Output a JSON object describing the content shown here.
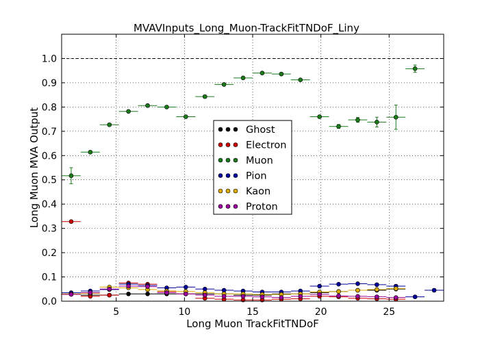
{
  "chart_data": {
    "type": "scatter",
    "title": "MVAVInputs_Long_Muon-TrackFitTNDoF_Liny",
    "xlabel": "Long Muon TrackFitTNDoF",
    "ylabel": "Long Muon MVA Output",
    "xlim": [
      1,
      29
    ],
    "ylim": [
      0,
      1.1
    ],
    "xticks": [
      5,
      10,
      15,
      20,
      25
    ],
    "yticks": [
      0.0,
      0.1,
      0.2,
      0.3,
      0.4,
      0.5,
      0.6,
      0.7,
      0.8,
      0.9,
      1.0
    ],
    "x_bin_half_width": 0.7,
    "grid": true,
    "reference_line": 1.0,
    "legend_position": "center",
    "series": [
      {
        "name": "Ghost",
        "color": "#000000",
        "x": [
          1.7,
          3.1,
          4.5,
          5.9,
          7.3,
          8.7,
          10.1,
          11.5,
          12.9,
          14.3,
          15.7,
          17.1,
          18.5,
          19.9,
          21.3,
          22.7,
          24.1,
          25.5
        ],
        "y": [
          0.03,
          0.025,
          0.025,
          0.03,
          0.03,
          0.03,
          0.03,
          0.03,
          0.03,
          0.025,
          0.025,
          0.03,
          0.03,
          0.035,
          0.04,
          0.045,
          0.045,
          0.05
        ],
        "err": [
          0.003,
          0.003,
          0.003,
          0.003,
          0.003,
          0.003,
          0.003,
          0.003,
          0.003,
          0.003,
          0.003,
          0.003,
          0.003,
          0.003,
          0.003,
          0.003,
          0.004,
          0.005
        ]
      },
      {
        "name": "Electron",
        "color": "#cc0000",
        "x": [
          1.7,
          3.1,
          4.5,
          5.9,
          7.3,
          8.7,
          10.1,
          11.5,
          12.9,
          14.3,
          15.7,
          17.1,
          18.5,
          19.9,
          21.3,
          22.7,
          24.1,
          25.5
        ],
        "y": [
          0.328,
          0.02,
          0.025,
          0.075,
          0.07,
          0.04,
          0.03,
          0.012,
          0.008,
          0.005,
          0.005,
          0.008,
          0.01,
          0.02,
          0.018,
          0.012,
          0.01,
          0.008
        ],
        "err": [
          0.003,
          0.003,
          0.003,
          0.004,
          0.004,
          0.003,
          0.003,
          0.002,
          0.002,
          0.002,
          0.002,
          0.002,
          0.002,
          0.003,
          0.003,
          0.002,
          0.002,
          0.002
        ]
      },
      {
        "name": "Muon",
        "color": "#1a7a1a",
        "x": [
          1.7,
          3.1,
          4.5,
          5.9,
          7.3,
          8.7,
          10.1,
          11.5,
          12.9,
          14.3,
          15.7,
          17.1,
          18.5,
          19.9,
          21.3,
          22.7,
          24.1,
          25.5,
          26.9
        ],
        "y": [
          0.517,
          0.614,
          0.727,
          0.782,
          0.806,
          0.8,
          0.76,
          0.843,
          0.893,
          0.92,
          0.94,
          0.936,
          0.912,
          0.76,
          0.72,
          0.747,
          0.738,
          0.758,
          0.958
        ],
        "err": [
          0.033,
          0.005,
          0.004,
          0.003,
          0.003,
          0.003,
          0.004,
          0.003,
          0.003,
          0.003,
          0.003,
          0.003,
          0.004,
          0.006,
          0.008,
          0.01,
          0.02,
          0.05,
          0.015
        ]
      },
      {
        "name": "Pion",
        "color": "#000099",
        "x": [
          1.7,
          3.1,
          4.5,
          5.9,
          7.3,
          8.7,
          10.1,
          11.5,
          12.9,
          14.3,
          15.7,
          17.1,
          18.5,
          19.9,
          21.3,
          22.7,
          24.1,
          25.5,
          26.9,
          28.3
        ],
        "y": [
          0.035,
          0.042,
          0.048,
          0.07,
          0.065,
          0.055,
          0.058,
          0.05,
          0.045,
          0.042,
          0.038,
          0.038,
          0.042,
          0.062,
          0.07,
          0.072,
          0.068,
          0.062,
          0.018,
          0.045
        ],
        "err": [
          0.003,
          0.003,
          0.003,
          0.003,
          0.003,
          0.003,
          0.003,
          0.003,
          0.003,
          0.003,
          0.003,
          0.003,
          0.003,
          0.004,
          0.004,
          0.004,
          0.005,
          0.006,
          0.004,
          0.006
        ]
      },
      {
        "name": "Kaon",
        "color": "#ddaa00",
        "x": [
          1.7,
          3.1,
          4.5,
          5.9,
          7.3,
          8.7,
          10.1,
          11.5,
          12.9,
          14.3,
          15.7,
          17.1,
          18.5,
          19.9,
          21.3,
          22.7,
          24.1,
          25.5
        ],
        "y": [
          0.03,
          0.032,
          0.058,
          0.055,
          0.048,
          0.042,
          0.04,
          0.035,
          0.03,
          0.03,
          0.028,
          0.028,
          0.03,
          0.038,
          0.04,
          0.045,
          0.048,
          0.052
        ],
        "err": [
          0.003,
          0.003,
          0.003,
          0.003,
          0.003,
          0.003,
          0.003,
          0.003,
          0.003,
          0.003,
          0.003,
          0.003,
          0.003,
          0.004,
          0.004,
          0.004,
          0.005,
          0.006
        ]
      },
      {
        "name": "Proton",
        "color": "#990099",
        "x": [
          1.7,
          3.1,
          4.5,
          5.9,
          7.3,
          8.7,
          10.1,
          11.5,
          12.9,
          14.3,
          15.7,
          17.1,
          18.5,
          19.9,
          21.3,
          22.7,
          24.1,
          25.5
        ],
        "y": [
          0.028,
          0.035,
          0.05,
          0.062,
          0.06,
          0.035,
          0.03,
          0.025,
          0.02,
          0.02,
          0.018,
          0.015,
          0.02,
          0.028,
          0.022,
          0.02,
          0.018,
          0.015
        ],
        "err": [
          0.003,
          0.003,
          0.003,
          0.003,
          0.003,
          0.003,
          0.003,
          0.003,
          0.003,
          0.003,
          0.003,
          0.003,
          0.003,
          0.004,
          0.004,
          0.004,
          0.004,
          0.005
        ]
      }
    ]
  }
}
